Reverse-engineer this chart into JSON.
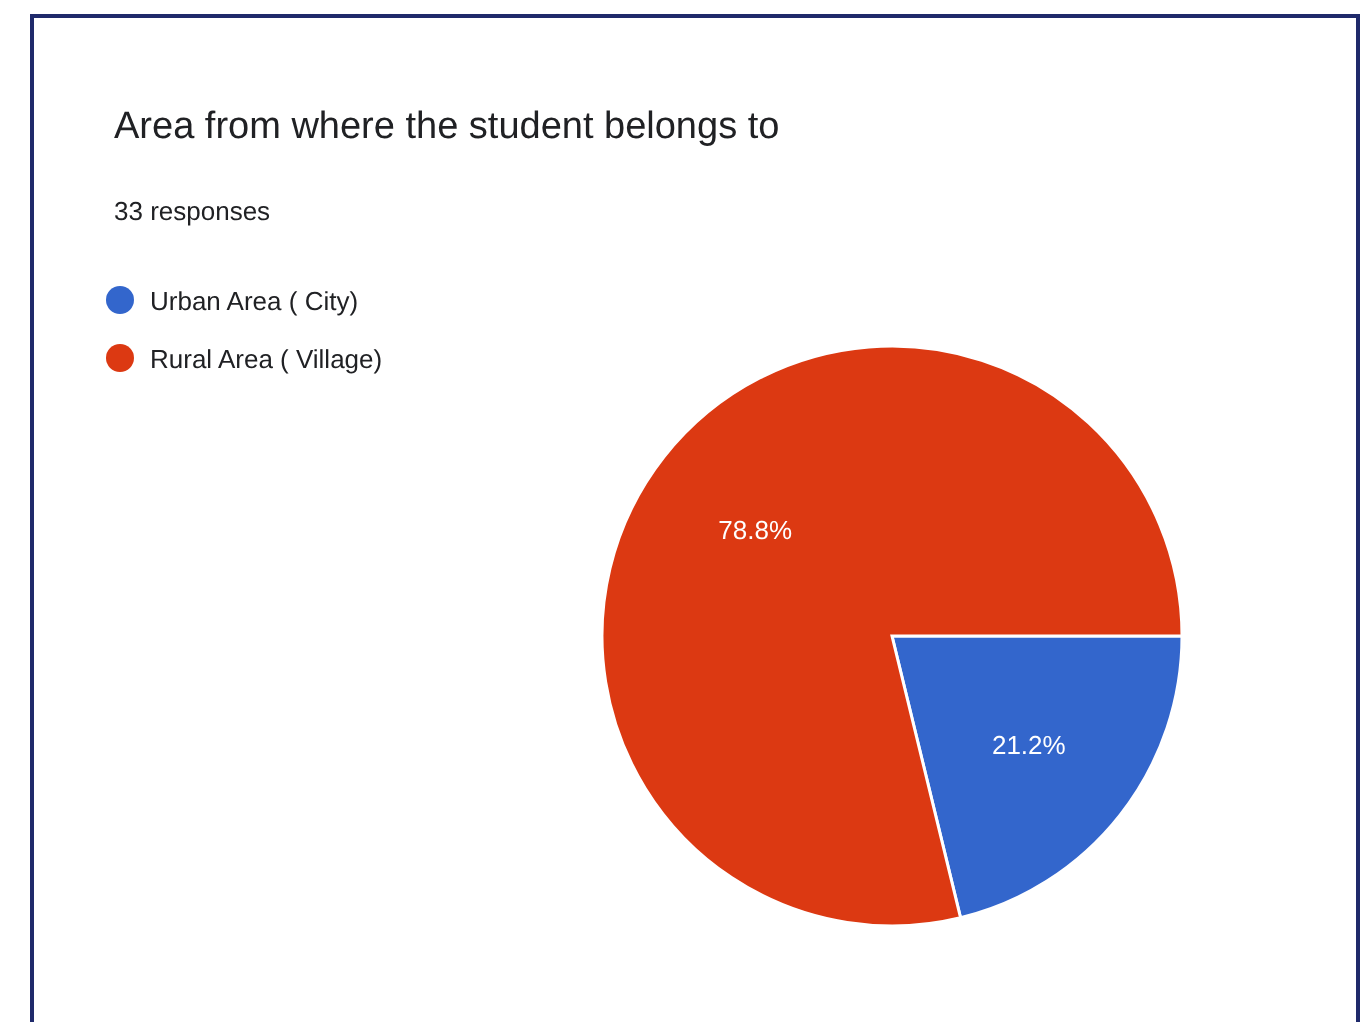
{
  "chart_data": {
    "type": "pie",
    "title": "Area from where the student belongs to",
    "subtitle": "33 responses",
    "categories": [
      "Urban Area ( City)",
      "Rural Area ( Village)"
    ],
    "values": [
      21.2,
      78.8
    ],
    "value_labels": [
      "21.2%",
      "78.8%"
    ],
    "colors": [
      "#3366cc",
      "#dc3912"
    ],
    "legend": "top left"
  }
}
